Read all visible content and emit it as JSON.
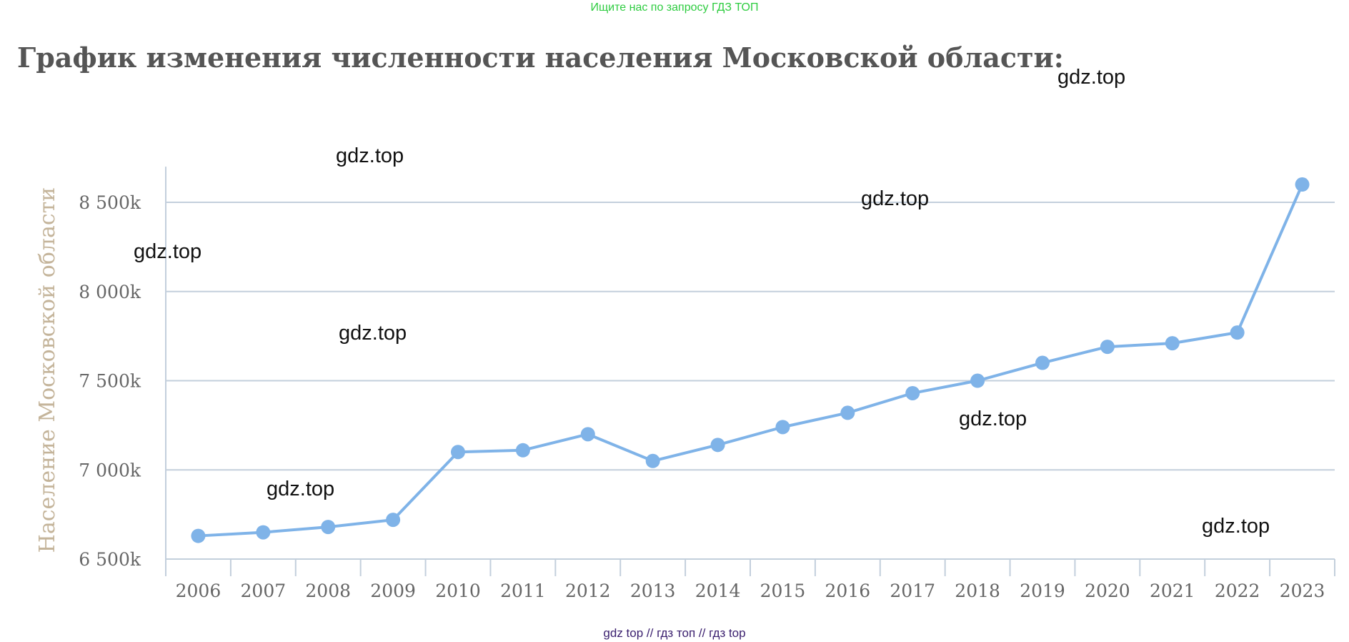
{
  "banner": "Ищите нас по запросу ГДЗ ТОП",
  "footer": "gdz top  //  гдз топ  //  гдз top",
  "watermarks": [
    "gdz.top",
    "gdz.top",
    "gdz.top",
    "gdz.top",
    "gdz.top",
    "gdz.top",
    "gdz.top",
    "gdz.top"
  ],
  "chart_data": {
    "type": "line",
    "title": "График изменения численности населения Московской области:",
    "xlabel": "",
    "ylabel": "Население Московской области",
    "categories": [
      "2006",
      "2007",
      "2008",
      "2009",
      "2010",
      "2011",
      "2012",
      "2013",
      "2014",
      "2015",
      "2016",
      "2017",
      "2018",
      "2019",
      "2020",
      "2021",
      "2022",
      "2023"
    ],
    "series": [
      {
        "values": [
          6630,
          6650,
          6680,
          6720,
          7100,
          7110,
          7200,
          7050,
          7140,
          7240,
          7320,
          7430,
          7500,
          7600,
          7690,
          7710,
          7770,
          8600
        ]
      }
    ],
    "ylim": [
      6500,
      8700
    ],
    "yticks": [
      6500,
      7000,
      7500,
      8000,
      8500
    ],
    "ytick_labels": [
      "6 500k",
      "7 000k",
      "7 500k",
      "8 000k",
      "8 500k"
    ],
    "grid": true,
    "line_color": "#7fb3e8",
    "grid_color": "#c3cfdc"
  }
}
